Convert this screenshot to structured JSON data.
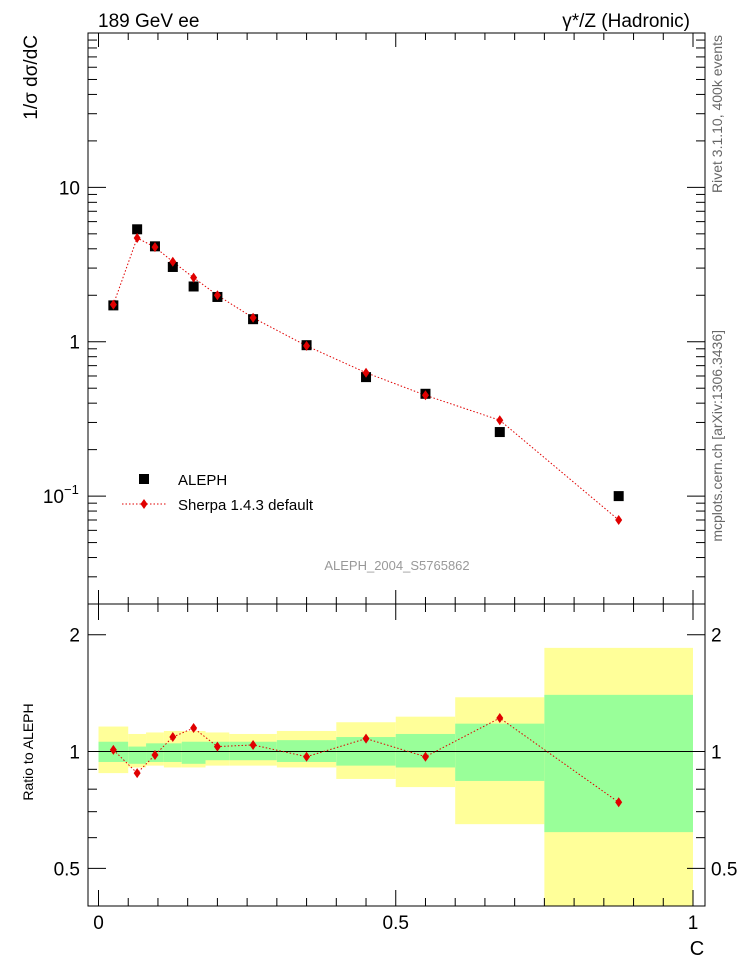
{
  "header": {
    "energy_label": "189 GeV ee",
    "process_label": "γ*/Z (Hadronic)"
  },
  "side": {
    "rivet_label": "Rivet 3.1.10,  400k events",
    "mcplots_label": "mcplots.cern.ch [arXiv:1306.3436]"
  },
  "analysis_label": "ALEPH_2004_S5765862",
  "colors": {
    "data": "#000000",
    "mc": "#e00000",
    "band_inner": "#99ff99",
    "band_outer": "#ffff99"
  },
  "chart_data": [
    {
      "type": "scatter",
      "ylabel": "1/σ  dσ/dC",
      "yscale": "log",
      "xlim": [
        0,
        1
      ],
      "ylim": [
        0.02,
        100
      ],
      "yticks": [
        {
          "value": 10,
          "label": "10"
        },
        {
          "value": 1,
          "label": "1"
        },
        {
          "value": 0.1,
          "label": "10",
          "exp": "−1"
        }
      ],
      "legend_position": "bottom-left",
      "series": [
        {
          "name": "ALEPH",
          "marker": "square",
          "x": [
            0.025,
            0.065,
            0.095,
            0.125,
            0.16,
            0.2,
            0.26,
            0.35,
            0.45,
            0.55,
            0.675,
            0.875
          ],
          "y": [
            1.72,
            5.35,
            4.15,
            3.05,
            2.28,
            1.95,
            1.4,
            0.95,
            0.59,
            0.46,
            0.26,
            0.1
          ]
        },
        {
          "name": "Sherpa 1.4.3 default",
          "marker": "diamond",
          "line": "dotted",
          "x": [
            0.025,
            0.065,
            0.095,
            0.125,
            0.16,
            0.2,
            0.26,
            0.35,
            0.45,
            0.55,
            0.675,
            0.875
          ],
          "y": [
            1.74,
            4.7,
            4.1,
            3.3,
            2.6,
            2.0,
            1.43,
            0.94,
            0.63,
            0.45,
            0.31,
            0.07
          ]
        }
      ]
    },
    {
      "type": "line",
      "ylabel": "Ratio to ALEPH",
      "xlabel": "C",
      "yscale": "log",
      "xlim": [
        -0.02,
        1.02
      ],
      "ylim": [
        0.4,
        2.4
      ],
      "yticks": [
        {
          "value": 2,
          "label": "2"
        },
        {
          "value": 1,
          "label": "1"
        },
        {
          "value": 0.5,
          "label": "0.5"
        }
      ],
      "xticks": [
        {
          "value": 0,
          "label": "0"
        },
        {
          "value": 0.5,
          "label": "0.5"
        },
        {
          "value": 1,
          "label": "1"
        }
      ],
      "reference_line": 1,
      "bands": [
        {
          "x0": 0.0,
          "x1": 0.05,
          "inner": [
            0.94,
            1.06
          ],
          "outer": [
            0.88,
            1.16
          ]
        },
        {
          "x0": 0.05,
          "x1": 0.08,
          "inner": [
            0.93,
            1.03
          ],
          "outer": [
            0.91,
            1.11
          ]
        },
        {
          "x0": 0.08,
          "x1": 0.11,
          "inner": [
            0.94,
            1.05
          ],
          "outer": [
            0.92,
            1.12
          ]
        },
        {
          "x0": 0.11,
          "x1": 0.14,
          "inner": [
            0.94,
            1.05
          ],
          "outer": [
            0.91,
            1.13
          ]
        },
        {
          "x0": 0.14,
          "x1": 0.18,
          "inner": [
            0.93,
            1.06
          ],
          "outer": [
            0.91,
            1.13
          ]
        },
        {
          "x0": 0.18,
          "x1": 0.22,
          "inner": [
            0.95,
            1.06
          ],
          "outer": [
            0.92,
            1.12
          ]
        },
        {
          "x0": 0.22,
          "x1": 0.3,
          "inner": [
            0.95,
            1.06
          ],
          "outer": [
            0.92,
            1.11
          ]
        },
        {
          "x0": 0.3,
          "x1": 0.4,
          "inner": [
            0.94,
            1.07
          ],
          "outer": [
            0.91,
            1.13
          ]
        },
        {
          "x0": 0.4,
          "x1": 0.5,
          "inner": [
            0.92,
            1.09
          ],
          "outer": [
            0.85,
            1.19
          ]
        },
        {
          "x0": 0.5,
          "x1": 0.6,
          "inner": [
            0.91,
            1.11
          ],
          "outer": [
            0.81,
            1.23
          ]
        },
        {
          "x0": 0.6,
          "x1": 0.75,
          "inner": [
            0.84,
            1.18
          ],
          "outer": [
            0.65,
            1.38
          ]
        },
        {
          "x0": 0.75,
          "x1": 1.0,
          "inner": [
            0.62,
            1.4
          ],
          "outer": [
            0.36,
            1.85
          ]
        }
      ],
      "series": [
        {
          "name": "Sherpa 1.4.3 default",
          "marker": "diamond",
          "line": "dotted",
          "x": [
            0.025,
            0.065,
            0.095,
            0.125,
            0.16,
            0.2,
            0.26,
            0.35,
            0.45,
            0.55,
            0.675,
            0.875
          ],
          "y": [
            1.01,
            0.88,
            0.98,
            1.09,
            1.15,
            1.03,
            1.04,
            0.97,
            1.08,
            0.97,
            1.22,
            0.74
          ]
        }
      ]
    }
  ]
}
